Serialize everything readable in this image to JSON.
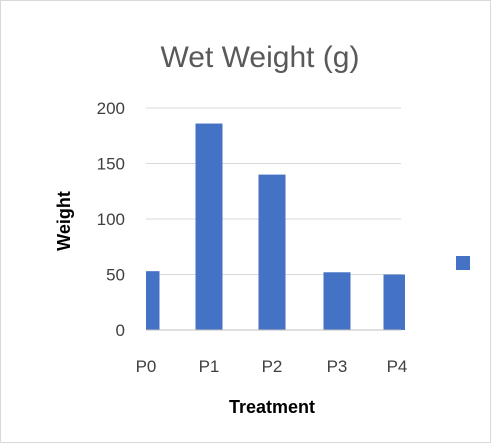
{
  "chart_data": {
    "type": "bar",
    "title": "Wet Weight (g)",
    "xlabel": "Treatment",
    "ylabel": "Weight",
    "categories": [
      "P0",
      "P1",
      "P2",
      "P3",
      "P4"
    ],
    "series": [
      {
        "values": [
          53,
          186,
          140,
          52,
          50
        ]
      }
    ],
    "ylim": [
      0,
      200
    ],
    "yticks": [
      0,
      50,
      100,
      150,
      200
    ],
    "ytick_labels": [
      "0",
      "50",
      "100",
      "150",
      "200"
    ],
    "grid": true,
    "legend": "right",
    "colors": {
      "bar": "#4472c4",
      "grid": "#d9d9d9",
      "axis": "#bfbfbf"
    }
  }
}
